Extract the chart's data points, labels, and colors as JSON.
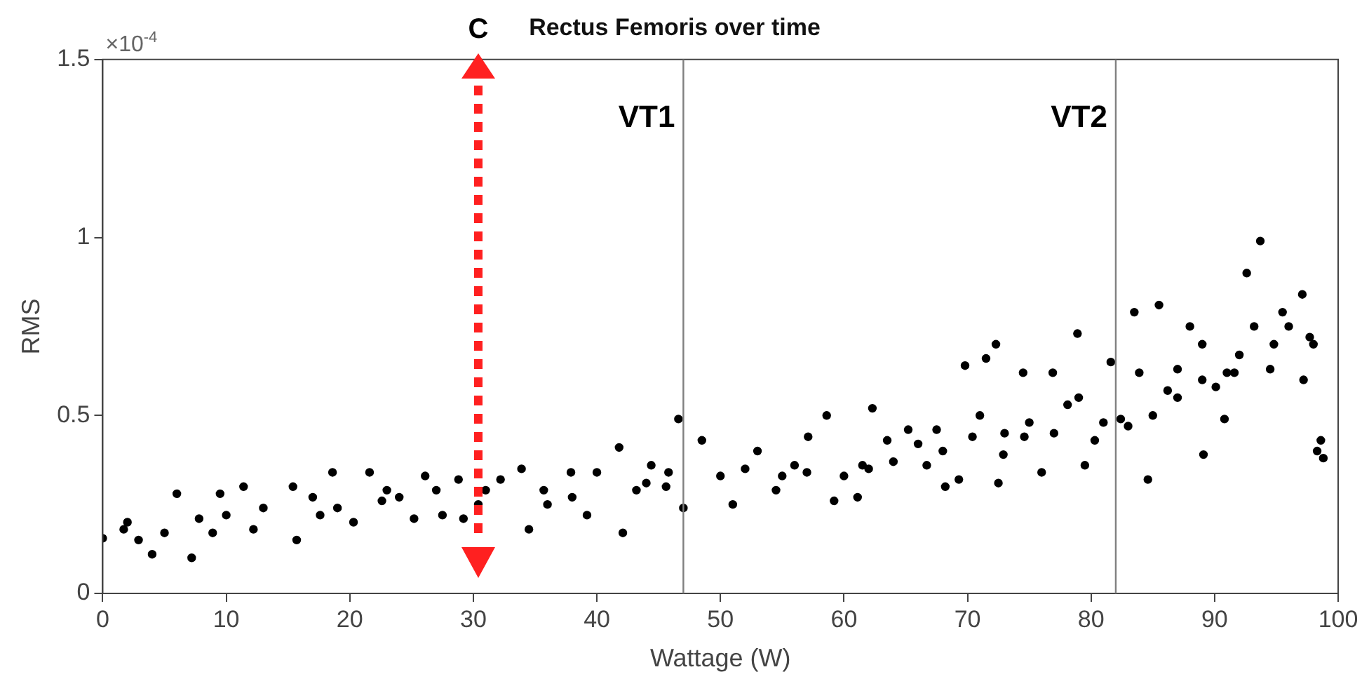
{
  "chart_data": {
    "type": "scatter",
    "title": "Rectus Femoris over time",
    "xlabel": "Wattage (W)",
    "ylabel": "RMS",
    "annotations": [
      "C",
      "×10$^{-4}$"
    ],
    "xlim": [
      0,
      100
    ],
    "xticks": [
      0,
      10,
      20,
      30,
      40,
      50,
      60,
      70,
      80,
      90,
      100
    ],
    "ylim": [
      0,
      1.5
    ],
    "yticks": [
      0,
      0.5,
      1,
      1.5
    ],
    "grid": false,
    "legend": false,
    "marker": "circle",
    "ref_lines": [
      {
        "axis": "x",
        "value": 47,
        "label": "VT1",
        "color": "#808080"
      },
      {
        "axis": "x",
        "value": 82,
        "label": "VT2",
        "color": "#808080"
      }
    ],
    "series": [
      {
        "color": "#000000",
        "x": [
          0,
          1.7,
          4,
          2.9,
          6,
          7.2,
          7.8,
          9.5,
          8.9,
          11.4,
          12.2,
          15.7,
          15.4,
          18.6,
          17.6,
          20.3,
          21.6,
          22.6,
          25.2,
          26.1,
          27.5,
          29.2,
          28.8,
          30.4,
          32.2,
          34.5,
          33.9,
          35.7,
          37.9,
          39.2,
          40,
          42.1,
          41.8,
          43.2,
          44.4,
          45.8,
          46.6,
          47,
          45.6,
          48.5,
          51,
          53,
          54.5,
          56,
          57.1,
          58.6,
          59.2,
          61.1,
          61.5,
          62.3,
          63.5,
          65.2,
          66.7,
          67.5,
          68.2,
          69.3,
          69.8,
          70.4,
          71,
          71.5,
          72.3,
          72.5,
          72.9,
          74.5,
          74.6,
          76,
          76.9,
          78.1,
          78.9,
          79.5,
          80.3,
          81.6,
          82.4,
          83.5,
          83.9,
          84.6,
          85.5,
          86.2,
          87,
          88,
          89,
          89.1,
          90.1,
          90.8,
          91.6,
          92,
          92.6,
          93.2,
          93.7,
          94.5,
          94.8,
          95.5,
          97.1,
          97.2,
          97.7,
          98.3,
          98.6,
          98.8,
          2,
          5,
          10,
          13,
          17,
          19,
          23,
          24,
          27,
          31,
          36,
          38,
          44,
          50,
          52,
          55,
          57,
          60,
          62,
          64,
          66,
          68,
          73,
          75,
          77,
          79,
          81,
          83,
          85,
          87,
          89,
          91,
          96,
          98
        ],
        "values": [
          0.155,
          0.18,
          0.11,
          0.15,
          0.28,
          0.1,
          0.21,
          0.28,
          0.17,
          0.3,
          0.18,
          0.15,
          0.3,
          0.34,
          0.22,
          0.2,
          0.34,
          0.26,
          0.21,
          0.33,
          0.22,
          0.21,
          0.32,
          0.25,
          0.32,
          0.18,
          0.35,
          0.29,
          0.34,
          0.22,
          0.34,
          0.17,
          0.41,
          0.29,
          0.36,
          0.34,
          0.49,
          0.24,
          0.3,
          0.43,
          0.25,
          0.4,
          0.29,
          0.36,
          0.44,
          0.5,
          0.26,
          0.27,
          0.36,
          0.52,
          0.43,
          0.46,
          0.36,
          0.46,
          0.3,
          0.32,
          0.64,
          0.44,
          0.5,
          0.66,
          0.7,
          0.31,
          0.39,
          0.62,
          0.44,
          0.34,
          0.62,
          0.53,
          0.73,
          0.36,
          0.43,
          0.65,
          0.49,
          0.79,
          0.62,
          0.32,
          0.81,
          0.57,
          0.63,
          0.75,
          0.7,
          0.39,
          0.58,
          0.49,
          0.62,
          0.67,
          0.9,
          0.75,
          0.99,
          0.63,
          0.7,
          0.79,
          0.84,
          0.6,
          0.72,
          0.4,
          0.43,
          0.38,
          0.2,
          0.17,
          0.22,
          0.24,
          0.27,
          0.24,
          0.29,
          0.27,
          0.29,
          0.29,
          0.25,
          0.27,
          0.31,
          0.33,
          0.35,
          0.33,
          0.34,
          0.33,
          0.35,
          0.37,
          0.42,
          0.4,
          0.45,
          0.48,
          0.45,
          0.55,
          0.48,
          0.47,
          0.5,
          0.55,
          0.6,
          0.62,
          0.75,
          0.7
        ]
      }
    ]
  }
}
